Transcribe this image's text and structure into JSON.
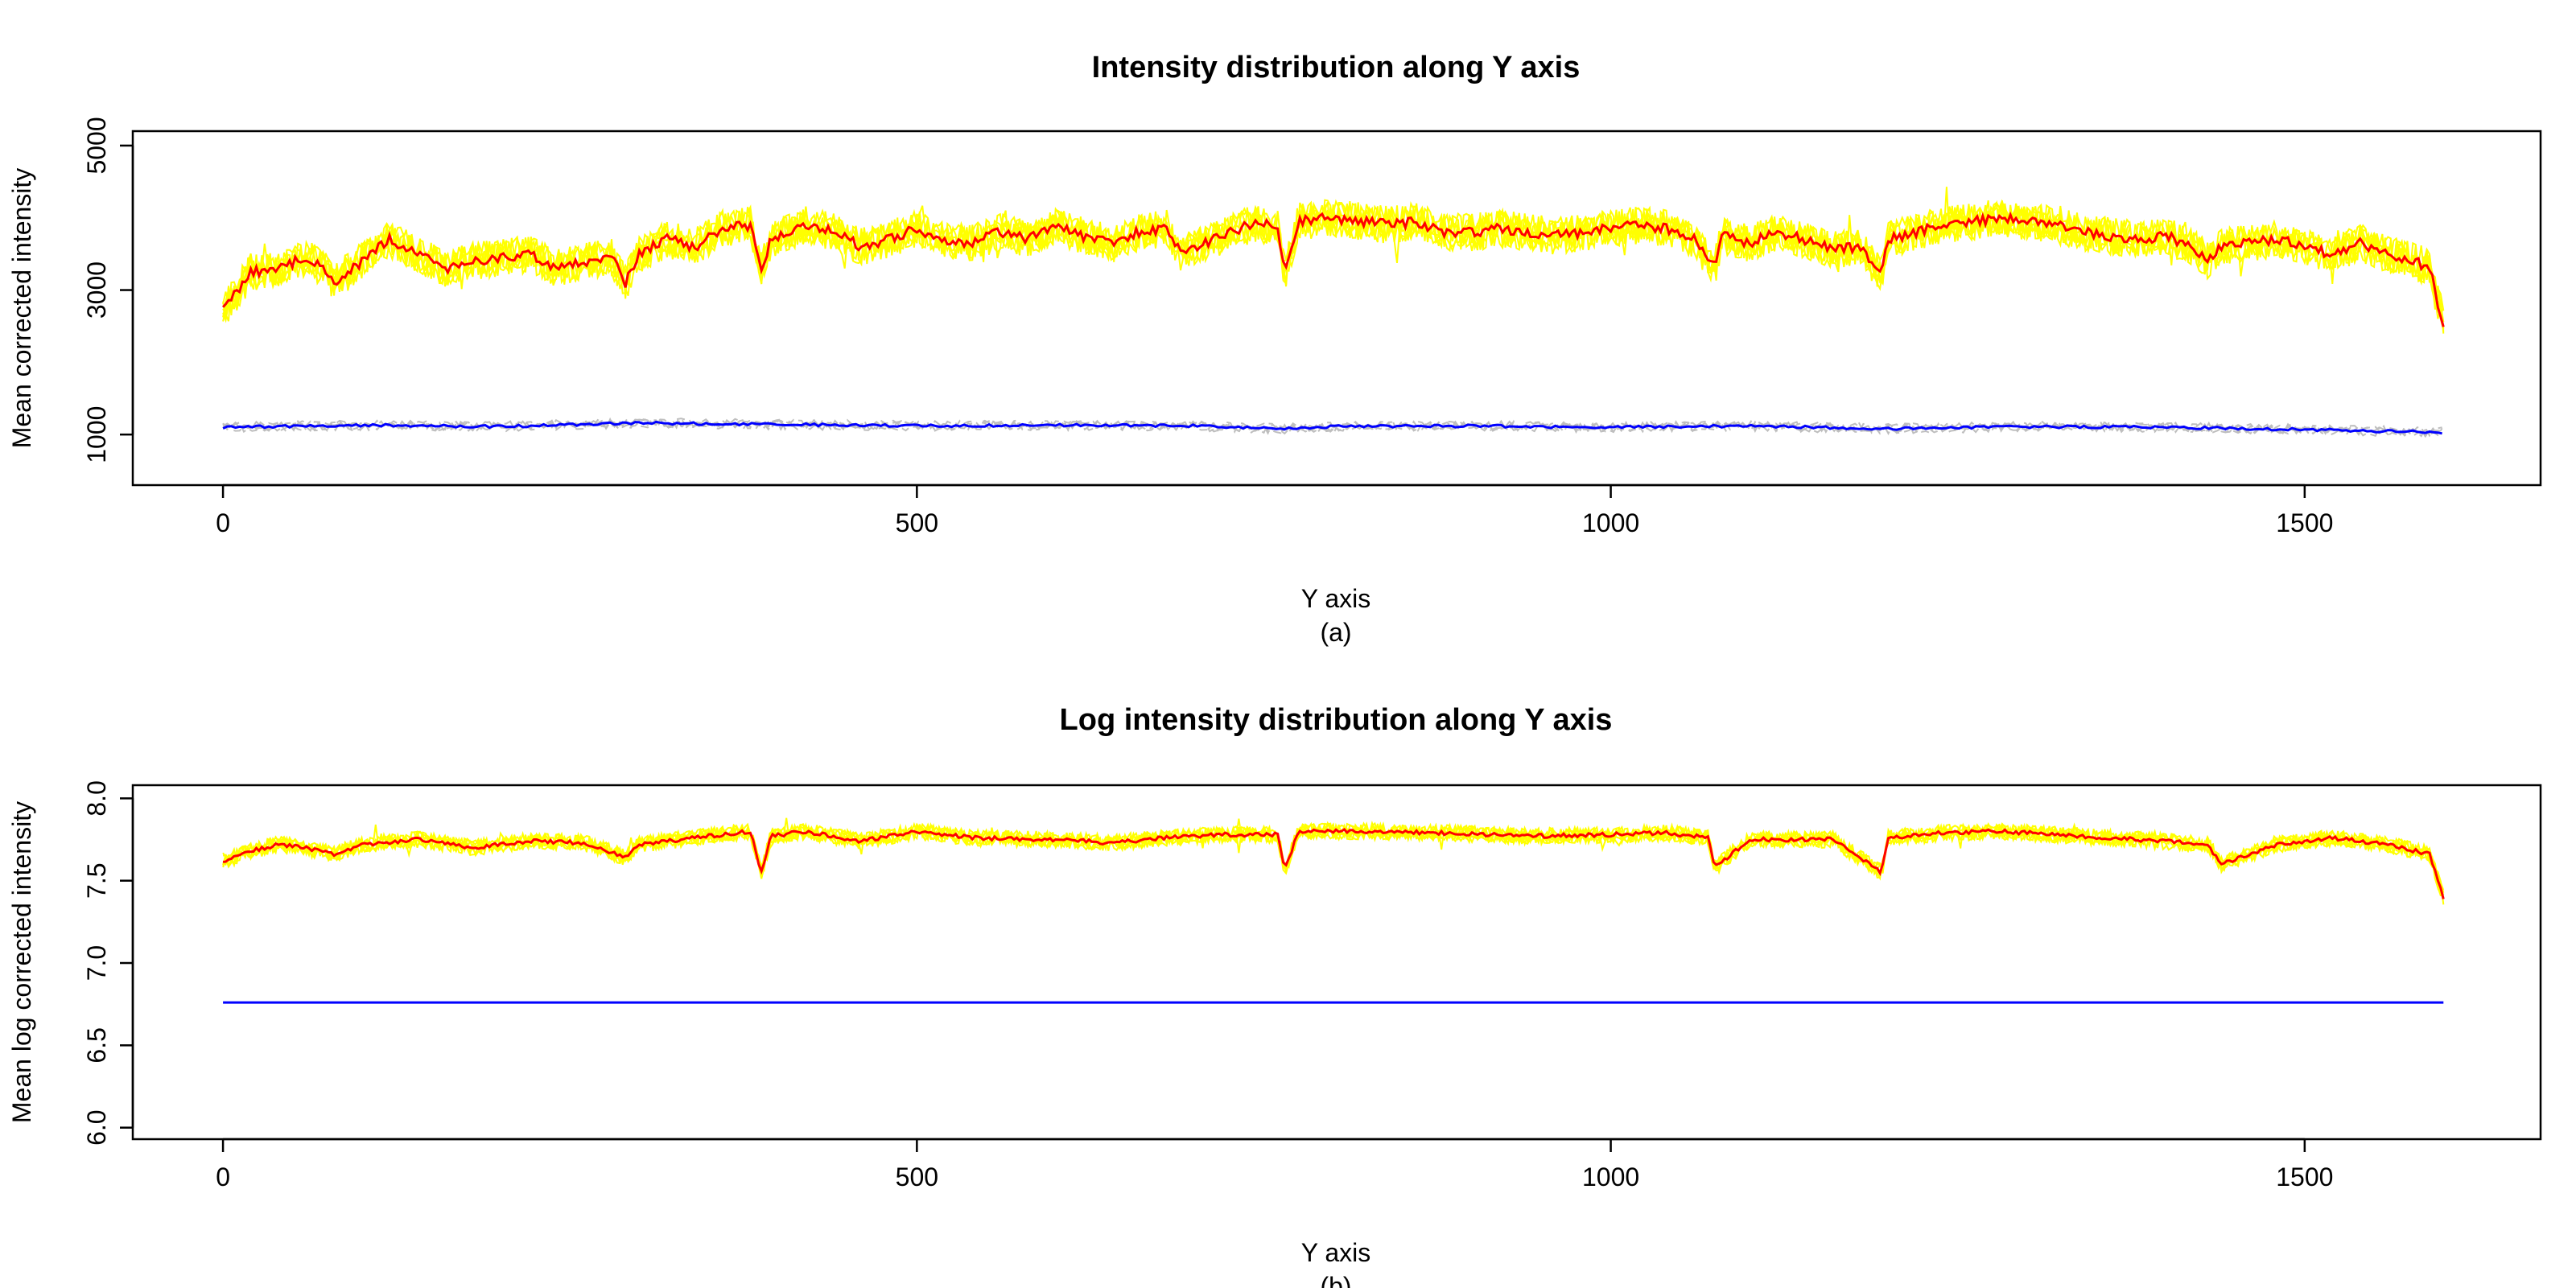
{
  "colors": {
    "sample_lines": "#ffff00",
    "mean_line": "#ff0000",
    "control_lines": "#bebebe",
    "control_mean": "#0000ff"
  },
  "chart_data": [
    {
      "type": "line",
      "title": "Intensity distribution along Y axis",
      "xlabel": "Y axis",
      "caption": "(a)",
      "ylabel": "Mean corrected intensity",
      "xlim": [
        -65,
        1670
      ],
      "ylim": [
        300,
        5200
      ],
      "xticks": [
        0,
        500,
        1000,
        1500
      ],
      "xtick_labels": [
        "0",
        "500",
        "1000",
        "1500"
      ],
      "yticks": [
        1000,
        3000,
        5000
      ],
      "ytick_labels": [
        "1000",
        "3000",
        "5000"
      ],
      "x_range": [
        0,
        1600
      ],
      "series": [
        {
          "role": "sample_mean",
          "color": "#ff0000",
          "x": [
            0,
            20,
            40,
            60,
            75,
            80,
            100,
            120,
            140,
            160,
            180,
            200,
            220,
            240,
            260,
            280,
            290,
            300,
            320,
            340,
            360,
            380,
            388,
            395,
            420,
            440,
            460,
            480,
            500,
            520,
            540,
            560,
            580,
            600,
            620,
            640,
            660,
            680,
            690,
            700,
            720,
            740,
            760,
            765,
            775,
            800,
            820,
            840,
            860,
            880,
            900,
            920,
            940,
            960,
            980,
            1000,
            1020,
            1040,
            1060,
            1075,
            1080,
            1100,
            1120,
            1140,
            1160,
            1180,
            1195,
            1200,
            1220,
            1240,
            1260,
            1280,
            1300,
            1320,
            1340,
            1360,
            1380,
            1400,
            1420,
            1430,
            1440,
            1460,
            1480,
            1500,
            1520,
            1540,
            1560,
            1580,
            1590,
            1600
          ],
          "y": [
            2700,
            3250,
            3300,
            3450,
            3250,
            3100,
            3400,
            3700,
            3500,
            3300,
            3400,
            3450,
            3500,
            3300,
            3400,
            3450,
            3100,
            3500,
            3700,
            3600,
            3850,
            3900,
            3300,
            3700,
            3900,
            3800,
            3600,
            3700,
            3850,
            3700,
            3650,
            3800,
            3700,
            3900,
            3750,
            3650,
            3800,
            3850,
            3500,
            3600,
            3750,
            3900,
            3900,
            3200,
            3950,
            4000,
            3950,
            3900,
            3950,
            3800,
            3800,
            3850,
            3800,
            3750,
            3800,
            3850,
            3900,
            3850,
            3700,
            3300,
            3750,
            3650,
            3800,
            3700,
            3550,
            3600,
            3200,
            3700,
            3800,
            3900,
            3950,
            4000,
            3950,
            3900,
            3800,
            3750,
            3700,
            3750,
            3600,
            3400,
            3600,
            3650,
            3700,
            3600,
            3500,
            3650,
            3500,
            3400,
            3300,
            2500
          ]
        },
        {
          "role": "control_mean",
          "color": "#0000ff",
          "x": [
            0,
            100,
            200,
            300,
            400,
            500,
            600,
            700,
            760,
            800,
            900,
            1000,
            1100,
            1200,
            1300,
            1400,
            1500,
            1600
          ],
          "y": [
            1100,
            1130,
            1110,
            1160,
            1140,
            1120,
            1130,
            1120,
            1080,
            1110,
            1120,
            1100,
            1120,
            1080,
            1110,
            1100,
            1070,
            1030
          ]
        }
      ]
    },
    {
      "type": "line",
      "title": "Log intensity distribution along Y axis",
      "xlabel": "Y axis",
      "caption": "(b)",
      "ylabel": "Mean log corrected intensity",
      "xlim": [
        -65,
        1670
      ],
      "ylim": [
        5.93,
        8.08
      ],
      "xticks": [
        0,
        500,
        1000,
        1500
      ],
      "xtick_labels": [
        "0",
        "500",
        "1000",
        "1500"
      ],
      "yticks": [
        6.0,
        6.5,
        7.0,
        7.5,
        8.0
      ],
      "ytick_labels": [
        "6.0",
        "6.5",
        "7.0",
        "7.5",
        "8.0"
      ],
      "x_range": [
        0,
        1600
      ],
      "series": [
        {
          "role": "sample_mean",
          "color": "#ff0000",
          "x": [
            0,
            20,
            40,
            60,
            80,
            100,
            140,
            180,
            220,
            260,
            290,
            300,
            340,
            380,
            388,
            395,
            420,
            460,
            500,
            540,
            600,
            640,
            680,
            720,
            760,
            765,
            775,
            820,
            880,
            940,
            1000,
            1040,
            1070,
            1075,
            1100,
            1160,
            1195,
            1200,
            1240,
            1280,
            1320,
            1380,
            1430,
            1440,
            1480,
            1520,
            1560,
            1590,
            1600
          ],
          "y": [
            7.62,
            7.68,
            7.72,
            7.7,
            7.66,
            7.72,
            7.75,
            7.7,
            7.74,
            7.73,
            7.64,
            7.72,
            7.76,
            7.8,
            7.55,
            7.77,
            7.8,
            7.74,
            7.8,
            7.76,
            7.75,
            7.73,
            7.76,
            7.78,
            7.78,
            7.56,
            7.8,
            7.8,
            7.79,
            7.77,
            7.78,
            7.79,
            7.76,
            7.58,
            7.75,
            7.75,
            7.55,
            7.76,
            7.79,
            7.8,
            7.78,
            7.75,
            7.72,
            7.6,
            7.72,
            7.76,
            7.72,
            7.66,
            7.4
          ]
        },
        {
          "role": "control_mean",
          "color": "#0000ff",
          "x": [
            0,
            1600
          ],
          "y": [
            6.76,
            6.76
          ]
        }
      ]
    }
  ]
}
